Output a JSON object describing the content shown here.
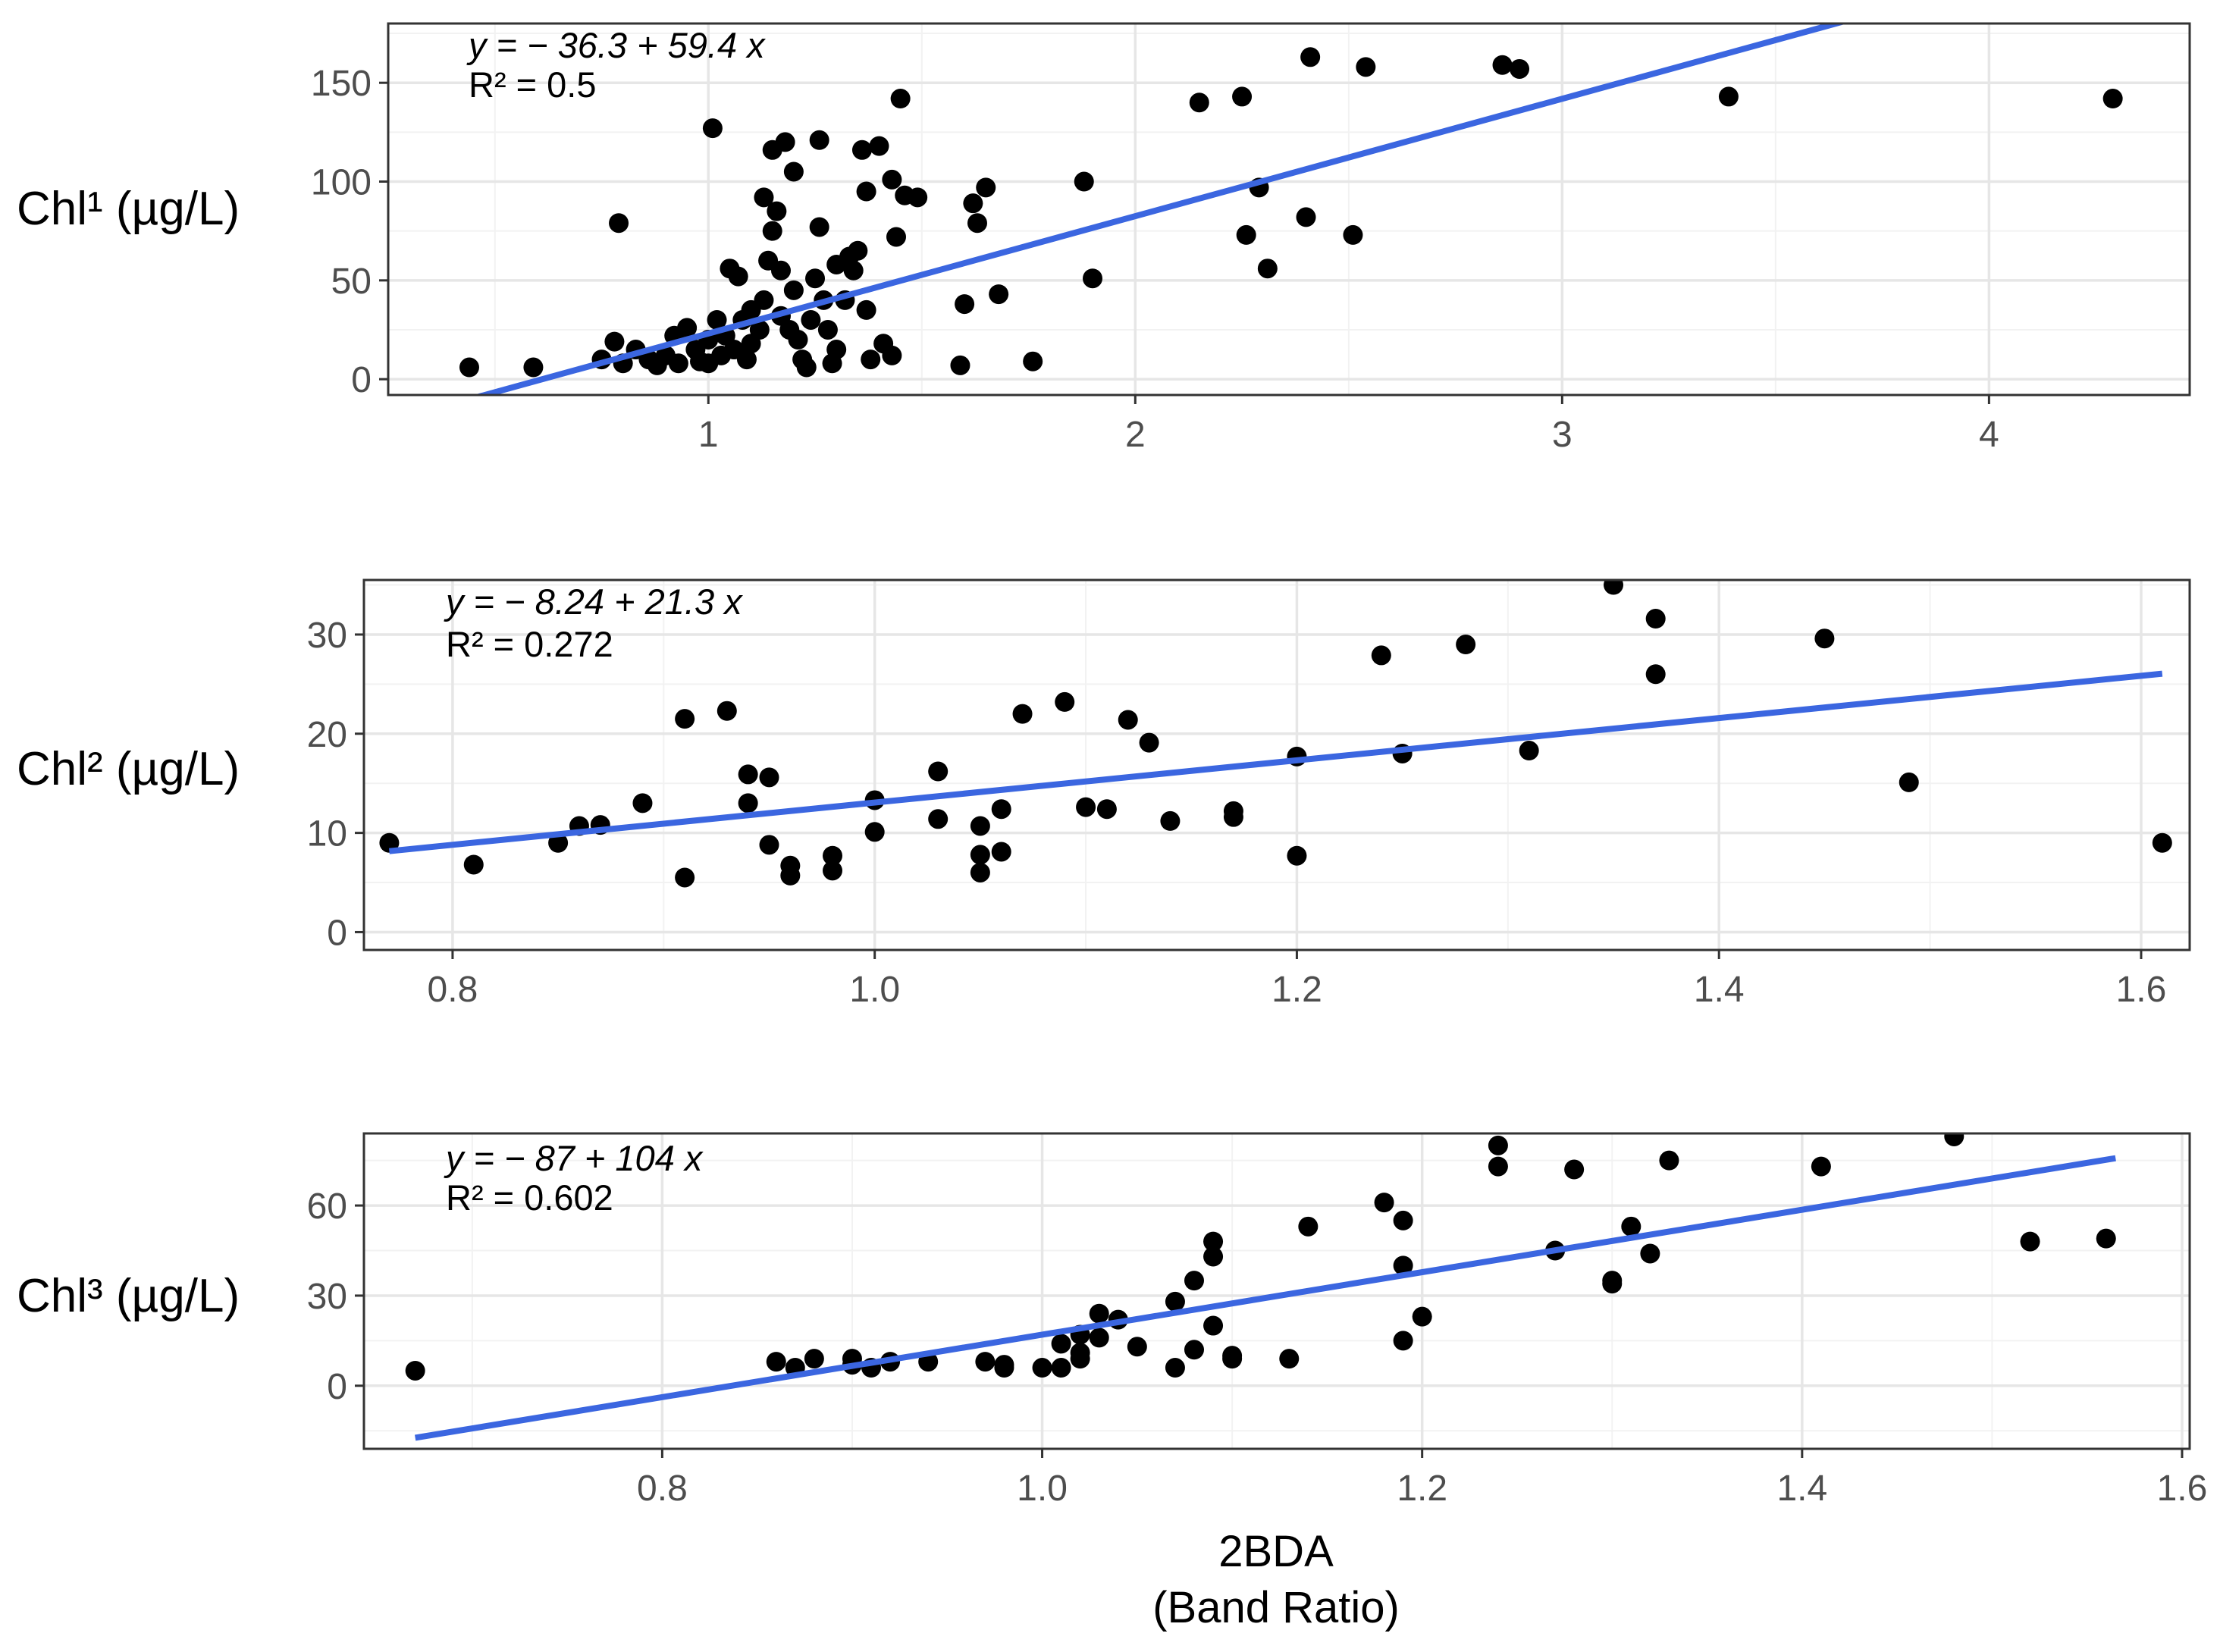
{
  "figure": {
    "xlabel_line1": "2BDA",
    "xlabel_line2": "(Band Ratio)"
  },
  "colors": {
    "panel_border": "#333333",
    "grid_major": "#e6e6e6",
    "grid_minor": "#f2f2f2",
    "point": "#000000",
    "fit_line": "#3b66e0",
    "tick_text": "#4d4d4d",
    "label_text": "#000000"
  },
  "chart_data": [
    {
      "type": "scatter",
      "title": "",
      "ylabel": "Chl¹ (µg/L)",
      "xlabel": "",
      "xlim": [
        0.25,
        4.47
      ],
      "ylim": [
        -8,
        180
      ],
      "xticks": [
        1,
        2,
        3,
        4
      ],
      "xtick_labels": [
        "1",
        "2",
        "3",
        "4"
      ],
      "yticks": [
        0,
        50,
        100,
        150
      ],
      "ytick_labels": [
        "0",
        "50",
        "100",
        "150"
      ],
      "grid": true,
      "annotation_equation": "y = − 36.3 + 59.4 x",
      "annotation_r2": "R² = 0.5",
      "fit": {
        "intercept": -36.3,
        "slope": 59.4,
        "x_range": [
          0.45,
          3.72
        ]
      },
      "points": [
        [
          0.44,
          6
        ],
        [
          0.59,
          6
        ],
        [
          0.75,
          10
        ],
        [
          0.78,
          19
        ],
        [
          0.79,
          79
        ],
        [
          0.8,
          8
        ],
        [
          0.83,
          15
        ],
        [
          0.86,
          10
        ],
        [
          0.88,
          7
        ],
        [
          0.9,
          12
        ],
        [
          0.92,
          22
        ],
        [
          0.93,
          8
        ],
        [
          0.95,
          26
        ],
        [
          0.97,
          15
        ],
        [
          0.98,
          9
        ],
        [
          1.0,
          20
        ],
        [
          1.0,
          8
        ],
        [
          1.01,
          127
        ],
        [
          1.02,
          30
        ],
        [
          1.03,
          12
        ],
        [
          1.04,
          22
        ],
        [
          1.05,
          56
        ],
        [
          1.06,
          15
        ],
        [
          1.07,
          52
        ],
        [
          1.08,
          30
        ],
        [
          1.09,
          10
        ],
        [
          1.1,
          35
        ],
        [
          1.1,
          18
        ],
        [
          1.12,
          25
        ],
        [
          1.13,
          92
        ],
        [
          1.13,
          40
        ],
        [
          1.14,
          60
        ],
        [
          1.15,
          116
        ],
        [
          1.15,
          75
        ],
        [
          1.16,
          85
        ],
        [
          1.17,
          32
        ],
        [
          1.17,
          55
        ],
        [
          1.18,
          120
        ],
        [
          1.19,
          25
        ],
        [
          1.2,
          105
        ],
        [
          1.2,
          45
        ],
        [
          1.21,
          20
        ],
        [
          1.22,
          10
        ],
        [
          1.23,
          6
        ],
        [
          1.24,
          30
        ],
        [
          1.25,
          51
        ],
        [
          1.26,
          121
        ],
        [
          1.26,
          77
        ],
        [
          1.27,
          40
        ],
        [
          1.28,
          25
        ],
        [
          1.29,
          8
        ],
        [
          1.3,
          58
        ],
        [
          1.3,
          15
        ],
        [
          1.32,
          40
        ],
        [
          1.33,
          62
        ],
        [
          1.34,
          55
        ],
        [
          1.35,
          65
        ],
        [
          1.36,
          116
        ],
        [
          1.37,
          95
        ],
        [
          1.37,
          35
        ],
        [
          1.38,
          10
        ],
        [
          1.4,
          118
        ],
        [
          1.41,
          18
        ],
        [
          1.43,
          101
        ],
        [
          1.43,
          12
        ],
        [
          1.44,
          72
        ],
        [
          1.45,
          142
        ],
        [
          1.46,
          93
        ],
        [
          1.49,
          92
        ],
        [
          1.59,
          7
        ],
        [
          1.6,
          38
        ],
        [
          1.62,
          89
        ],
        [
          1.63,
          79
        ],
        [
          1.65,
          97
        ],
        [
          1.68,
          43
        ],
        [
          1.76,
          9
        ],
        [
          1.88,
          100
        ],
        [
          1.9,
          51
        ],
        [
          2.15,
          140
        ],
        [
          2.25,
          143
        ],
        [
          2.26,
          73
        ],
        [
          2.29,
          97
        ],
        [
          2.31,
          56
        ],
        [
          2.4,
          82
        ],
        [
          2.41,
          163
        ],
        [
          2.51,
          73
        ],
        [
          2.54,
          158
        ],
        [
          2.86,
          159
        ],
        [
          2.9,
          157
        ],
        [
          3.39,
          143
        ],
        [
          4.29,
          142
        ]
      ]
    },
    {
      "type": "scatter",
      "title": "",
      "ylabel": "Chl² (µg/L)",
      "xlabel": "",
      "xlim": [
        0.758,
        1.623
      ],
      "ylim": [
        -1.8,
        35.5
      ],
      "xticks": [
        0.8,
        1.0,
        1.2,
        1.4,
        1.6
      ],
      "xtick_labels": [
        "0.8",
        "1.0",
        "1.2",
        "1.4",
        "1.6"
      ],
      "yticks": [
        0,
        10,
        20,
        30
      ],
      "ytick_labels": [
        "0",
        "10",
        "20",
        "30"
      ],
      "grid": true,
      "annotation_equation": "y = − 8.24 + 21.3 x",
      "annotation_r2": "R² = 0.272",
      "fit": {
        "intercept": -8.24,
        "slope": 21.3,
        "x_range": [
          0.77,
          1.61
        ]
      },
      "points": [
        [
          0.77,
          9
        ],
        [
          0.81,
          6.8
        ],
        [
          0.85,
          9
        ],
        [
          0.86,
          10.7
        ],
        [
          0.87,
          10.8
        ],
        [
          0.89,
          13
        ],
        [
          0.91,
          21.5
        ],
        [
          0.91,
          5.5
        ],
        [
          0.93,
          22.3
        ],
        [
          0.94,
          13
        ],
        [
          0.94,
          15.9
        ],
        [
          0.95,
          8.8
        ],
        [
          0.95,
          15.6
        ],
        [
          0.96,
          6.7
        ],
        [
          0.96,
          5.7
        ],
        [
          0.98,
          7.7
        ],
        [
          0.98,
          6.2
        ],
        [
          1.0,
          13.3
        ],
        [
          1.0,
          10.1
        ],
        [
          1.03,
          16.2
        ],
        [
          1.03,
          11.4
        ],
        [
          1.05,
          10.7
        ],
        [
          1.05,
          6
        ],
        [
          1.05,
          7.8
        ],
        [
          1.06,
          12.4
        ],
        [
          1.06,
          8.1
        ],
        [
          1.07,
          22
        ],
        [
          1.09,
          23.2
        ],
        [
          1.1,
          12.6
        ],
        [
          1.11,
          12.4
        ],
        [
          1.12,
          21.4
        ],
        [
          1.13,
          19.1
        ],
        [
          1.14,
          11.2
        ],
        [
          1.17,
          12.2
        ],
        [
          1.17,
          11.6
        ],
        [
          1.2,
          17.7
        ],
        [
          1.2,
          7.7
        ],
        [
          1.24,
          27.9
        ],
        [
          1.25,
          18
        ],
        [
          1.28,
          29
        ],
        [
          1.31,
          18.3
        ],
        [
          1.35,
          35
        ],
        [
          1.37,
          31.6
        ],
        [
          1.37,
          26
        ],
        [
          1.45,
          29.6
        ],
        [
          1.49,
          15.1
        ],
        [
          1.61,
          9
        ]
      ]
    },
    {
      "type": "scatter",
      "title": "",
      "ylabel": "Chl³ (µg/L)",
      "xlabel": "2BDA (Band Ratio)",
      "xlim": [
        0.643,
        1.604
      ],
      "ylim": [
        -21,
        84
      ],
      "xticks": [
        0.8,
        1.0,
        1.2,
        1.4,
        1.6
      ],
      "xtick_labels": [
        "0.8",
        "1.0",
        "1.2",
        "1.4",
        "1.6"
      ],
      "yticks": [
        0,
        30,
        60
      ],
      "ytick_labels": [
        "0",
        "30",
        "60"
      ],
      "grid": true,
      "annotation_equation": "y = − 87 + 104 x",
      "annotation_r2": "R² = 0.602",
      "fit": {
        "intercept": -87,
        "slope": 104,
        "x_range": [
          0.67,
          1.565
        ]
      },
      "points": [
        [
          0.67,
          5
        ],
        [
          0.86,
          8
        ],
        [
          0.87,
          6
        ],
        [
          0.88,
          9
        ],
        [
          0.9,
          9
        ],
        [
          0.9,
          7
        ],
        [
          0.91,
          6
        ],
        [
          0.92,
          8
        ],
        [
          0.94,
          8
        ],
        [
          0.97,
          8
        ],
        [
          0.98,
          6
        ],
        [
          0.98,
          7
        ],
        [
          1.0,
          6
        ],
        [
          1.01,
          14
        ],
        [
          1.01,
          6
        ],
        [
          1.02,
          11
        ],
        [
          1.02,
          17
        ],
        [
          1.02,
          9
        ],
        [
          1.03,
          24
        ],
        [
          1.03,
          16
        ],
        [
          1.04,
          22
        ],
        [
          1.05,
          13
        ],
        [
          1.07,
          6
        ],
        [
          1.07,
          28
        ],
        [
          1.08,
          12
        ],
        [
          1.08,
          35
        ],
        [
          1.09,
          43
        ],
        [
          1.09,
          48
        ],
        [
          1.09,
          20
        ],
        [
          1.1,
          10
        ],
        [
          1.1,
          9
        ],
        [
          1.13,
          9
        ],
        [
          1.14,
          53
        ],
        [
          1.18,
          61
        ],
        [
          1.19,
          55
        ],
        [
          1.19,
          40
        ],
        [
          1.19,
          15
        ],
        [
          1.2,
          23
        ],
        [
          1.24,
          73
        ],
        [
          1.24,
          80
        ],
        [
          1.27,
          45
        ],
        [
          1.28,
          72
        ],
        [
          1.3,
          34
        ],
        [
          1.3,
          35
        ],
        [
          1.31,
          53
        ],
        [
          1.32,
          44
        ],
        [
          1.33,
          75
        ],
        [
          1.41,
          73
        ],
        [
          1.48,
          83
        ],
        [
          1.52,
          48
        ],
        [
          1.56,
          49
        ]
      ]
    }
  ]
}
